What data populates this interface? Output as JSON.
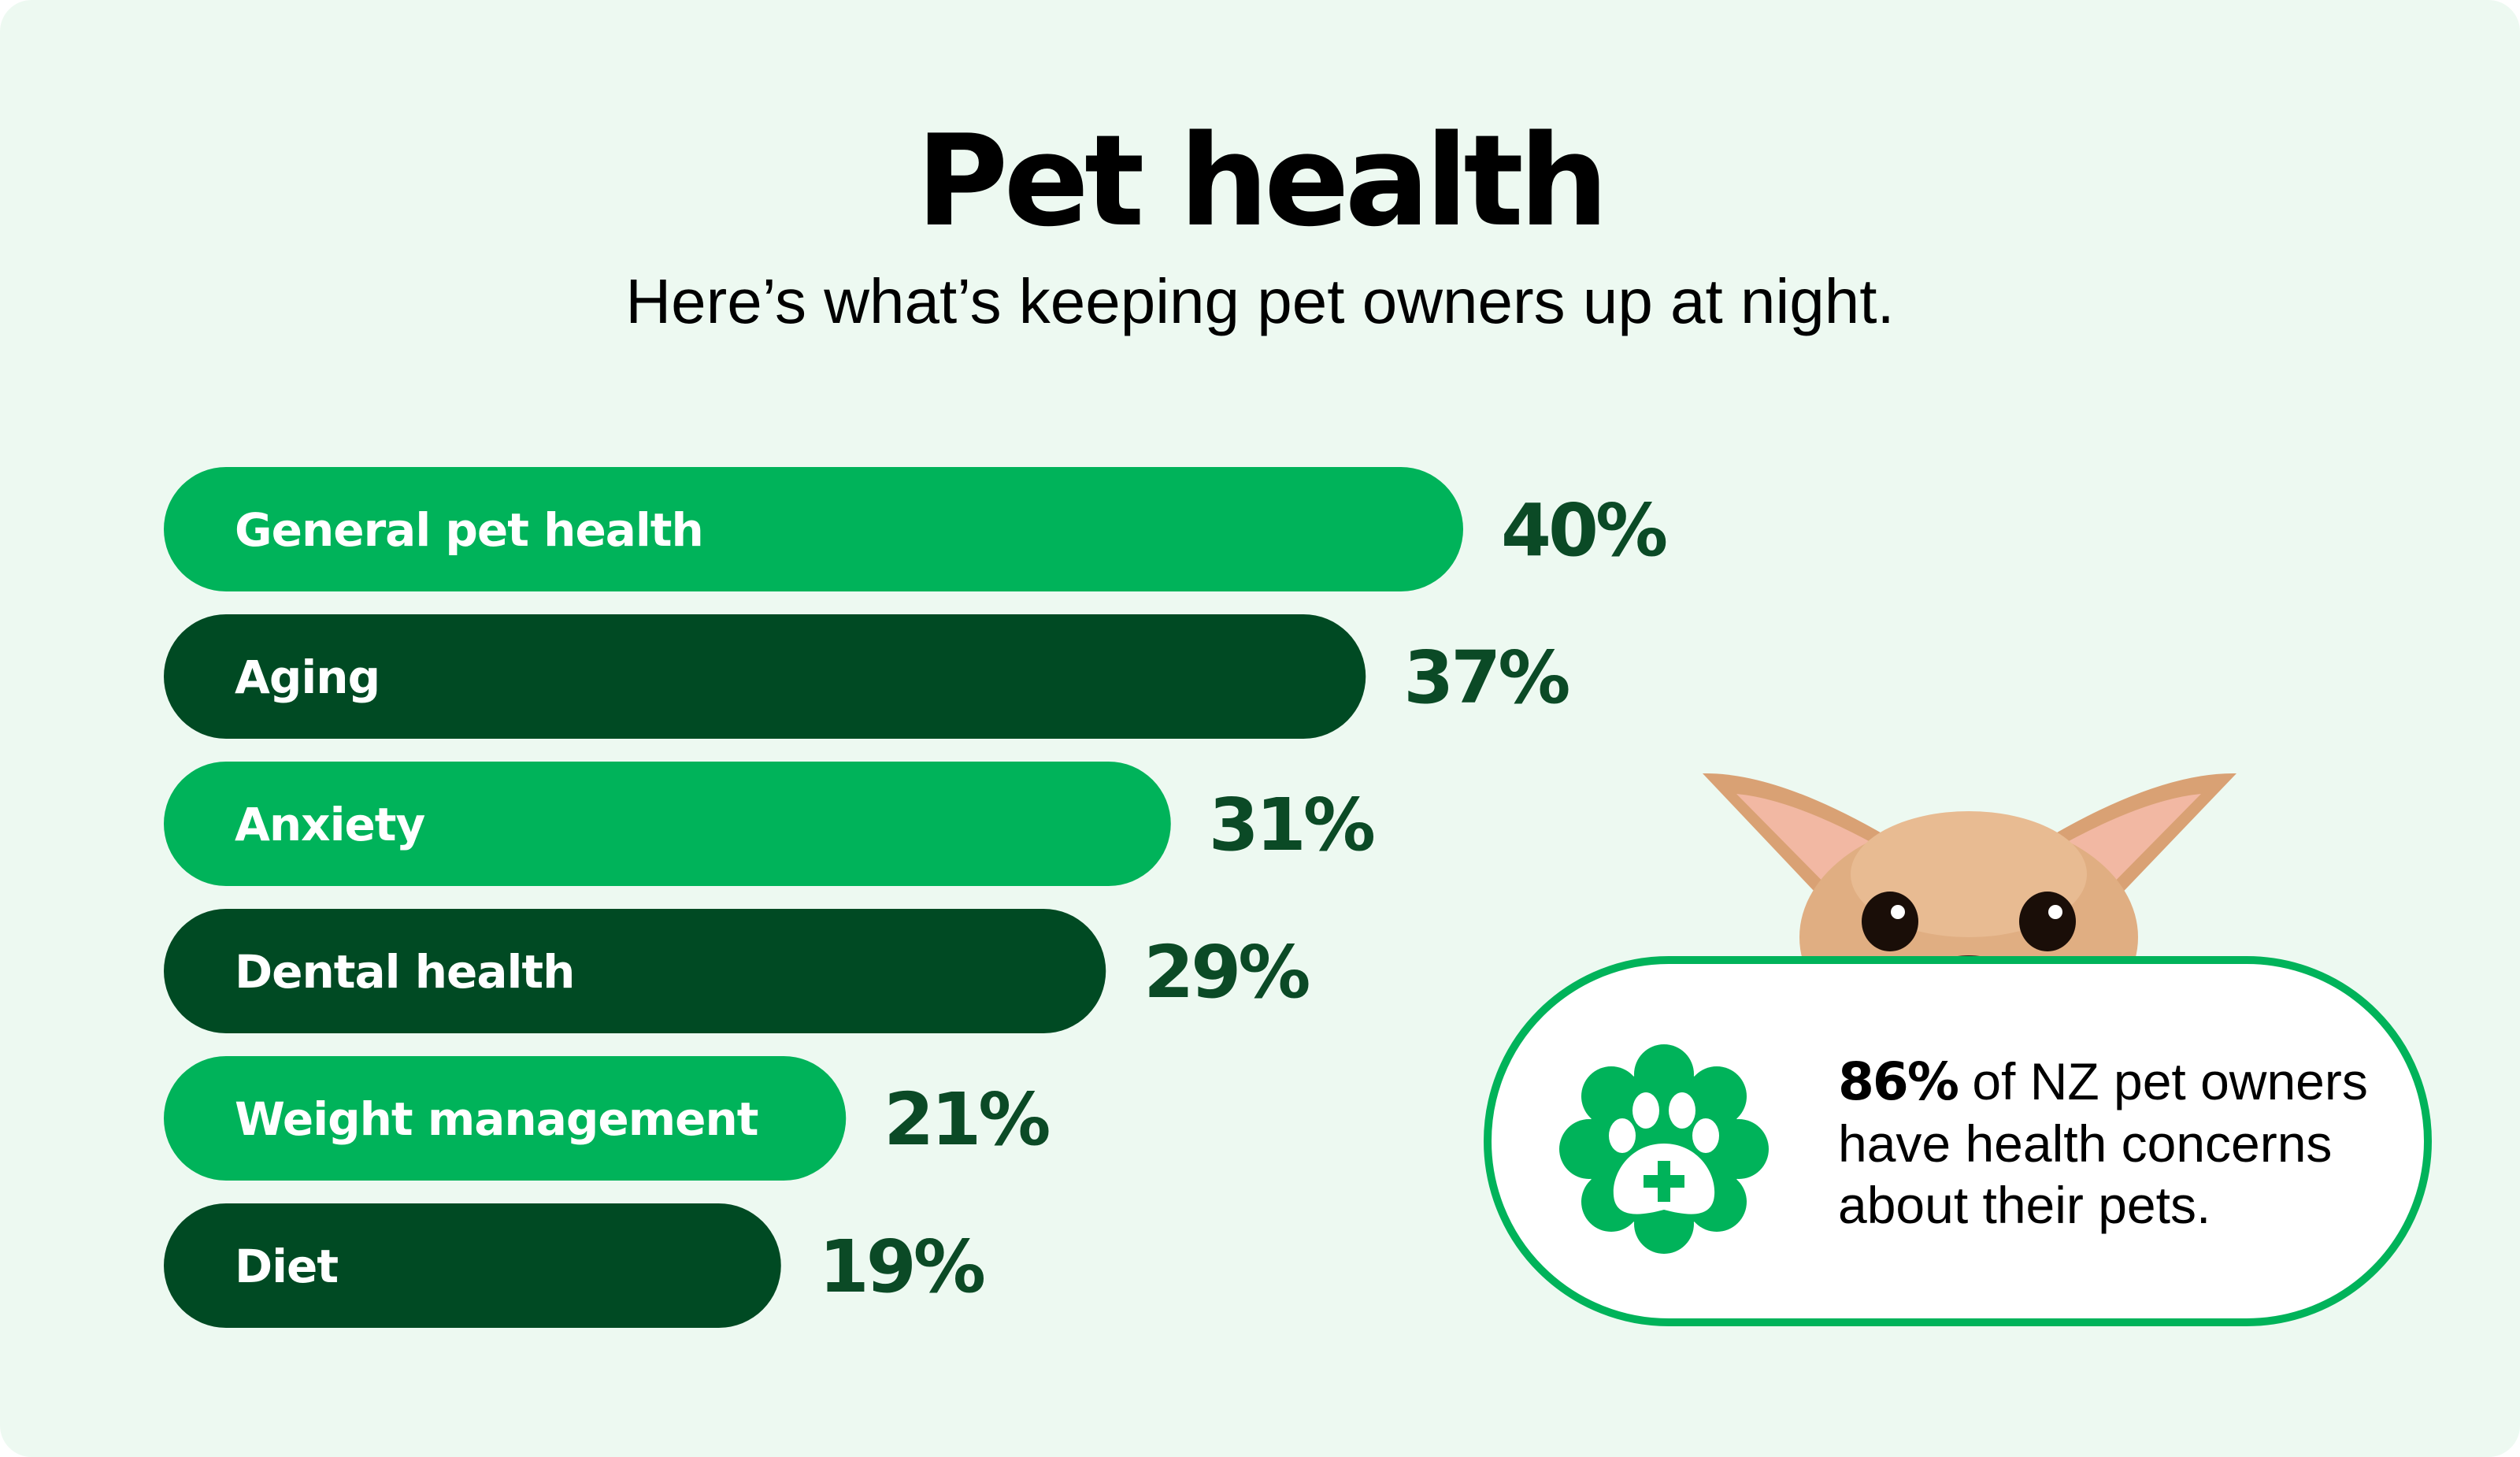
{
  "header": {
    "title": "Pet health",
    "subtitle": "Here’s what’s keeping pet owners up at night."
  },
  "colors": {
    "background": "#edf9f1",
    "bar_light": "#00b35a",
    "bar_dark": "#004a23",
    "value_text": "#0b4a26",
    "callout_border": "#00b35a"
  },
  "chart_data": {
    "type": "bar",
    "orientation": "horizontal",
    "title": "Pet health",
    "subtitle": "Here’s what’s keeping pet owners up at night.",
    "categories": [
      "General pet health",
      "Aging",
      "Anxiety",
      "Dental health",
      "Weight management",
      "Diet"
    ],
    "values": [
      40,
      37,
      31,
      29,
      21,
      19
    ],
    "value_labels": [
      "40%",
      "37%",
      "31%",
      "29%",
      "21%",
      "19%"
    ],
    "bar_colors": [
      "#00b35a",
      "#004a23",
      "#00b35a",
      "#004a23",
      "#00b35a",
      "#004a23"
    ],
    "unit": "%",
    "xlabel": "",
    "ylabel": "",
    "xlim": [
      0,
      40
    ],
    "grid": false,
    "legend": "none"
  },
  "callout": {
    "highlight": "86%",
    "text": " of NZ pet owners have health concerns about their pets.",
    "icon": "paw-cross-badge-icon"
  },
  "illustration": {
    "icon": "chihuahua-peeking-image"
  }
}
